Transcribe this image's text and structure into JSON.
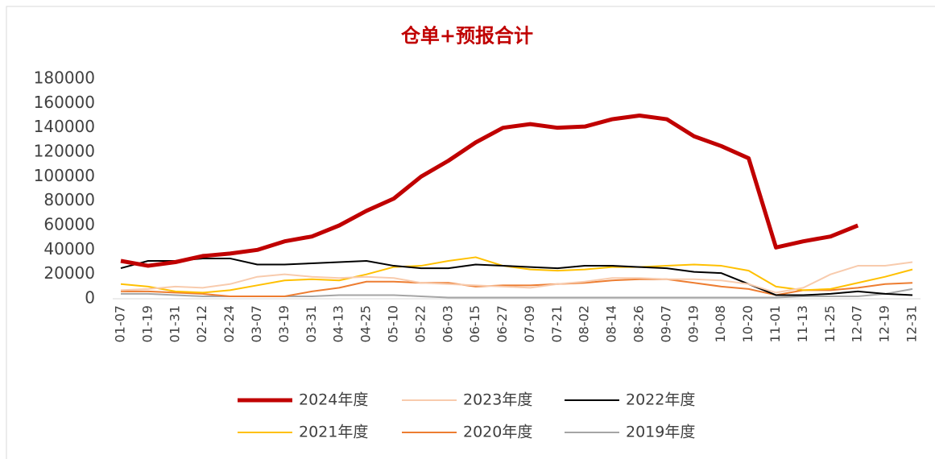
{
  "chart_data": {
    "type": "line",
    "title": "仓单+预报合计",
    "categories": [
      "01-07",
      "01-19",
      "01-31",
      "02-12",
      "02-24",
      "03-07",
      "03-19",
      "03-31",
      "04-13",
      "04-25",
      "05-10",
      "05-22",
      "06-03",
      "06-15",
      "06-27",
      "07-09",
      "07-21",
      "08-02",
      "08-14",
      "08-26",
      "09-07",
      "09-19",
      "10-08",
      "10-20",
      "11-01",
      "11-13",
      "11-25",
      "12-07",
      "12-19",
      "12-31"
    ],
    "series": [
      {
        "name": "2024年度",
        "color": "#c00000",
        "values": [
          31000,
          27000,
          30000,
          35000,
          37000,
          40000,
          47000,
          51000,
          60000,
          72000,
          82000,
          100000,
          113000,
          128000,
          140000,
          143000,
          140000,
          141000,
          147000,
          150000,
          147000,
          133000,
          125000,
          115000,
          42000,
          47000,
          51000,
          60000,
          null,
          null
        ]
      },
      {
        "name": "2023年度",
        "color": "#f8cbad",
        "values": [
          7000,
          8000,
          10000,
          9000,
          12000,
          18000,
          20000,
          18000,
          17000,
          18000,
          17000,
          13000,
          12000,
          11000,
          10000,
          9000,
          12000,
          14000,
          17000,
          17000,
          16000,
          16000,
          15000,
          12000,
          5000,
          9000,
          20000,
          27000,
          27000,
          30000
        ]
      },
      {
        "name": "2022年度",
        "color": "#000000",
        "values": [
          25000,
          31000,
          31000,
          33000,
          33000,
          28000,
          28000,
          29000,
          30000,
          31000,
          27000,
          25000,
          25000,
          28000,
          27000,
          26000,
          25000,
          27000,
          27000,
          26000,
          25000,
          22000,
          21000,
          12000,
          3000,
          3000,
          4000,
          6000,
          4000,
          3000
        ]
      },
      {
        "name": "2021年度",
        "color": "#ffc000",
        "values": [
          12000,
          10000,
          6000,
          5000,
          7000,
          11000,
          15000,
          16000,
          15000,
          20000,
          26000,
          27000,
          31000,
          34000,
          27000,
          24000,
          23000,
          24000,
          26000,
          26000,
          27000,
          28000,
          27000,
          23000,
          10000,
          7000,
          8000,
          13000,
          18000,
          24000
        ]
      },
      {
        "name": "2020年度",
        "color": "#ed7d31",
        "values": [
          6000,
          6000,
          5000,
          4000,
          2000,
          2000,
          2000,
          6000,
          9000,
          14000,
          14000,
          13000,
          13000,
          10000,
          11000,
          11000,
          12000,
          13000,
          15000,
          16000,
          16000,
          13000,
          10000,
          8000,
          3000,
          7000,
          7000,
          9000,
          12000,
          13000
        ]
      },
      {
        "name": "2019年度",
        "color": "#a5a5a5",
        "values": [
          4000,
          4000,
          3000,
          2000,
          2000,
          2000,
          2000,
          2000,
          3000,
          3000,
          3000,
          2000,
          1000,
          1000,
          1000,
          1000,
          1000,
          1000,
          1000,
          1000,
          1000,
          1000,
          1000,
          1000,
          1000,
          2000,
          2000,
          2000,
          4000,
          8000
        ]
      }
    ],
    "ylim": [
      0,
      180000
    ],
    "yticks": [
      0,
      20000,
      40000,
      60000,
      80000,
      100000,
      120000,
      140000,
      160000,
      180000
    ]
  }
}
